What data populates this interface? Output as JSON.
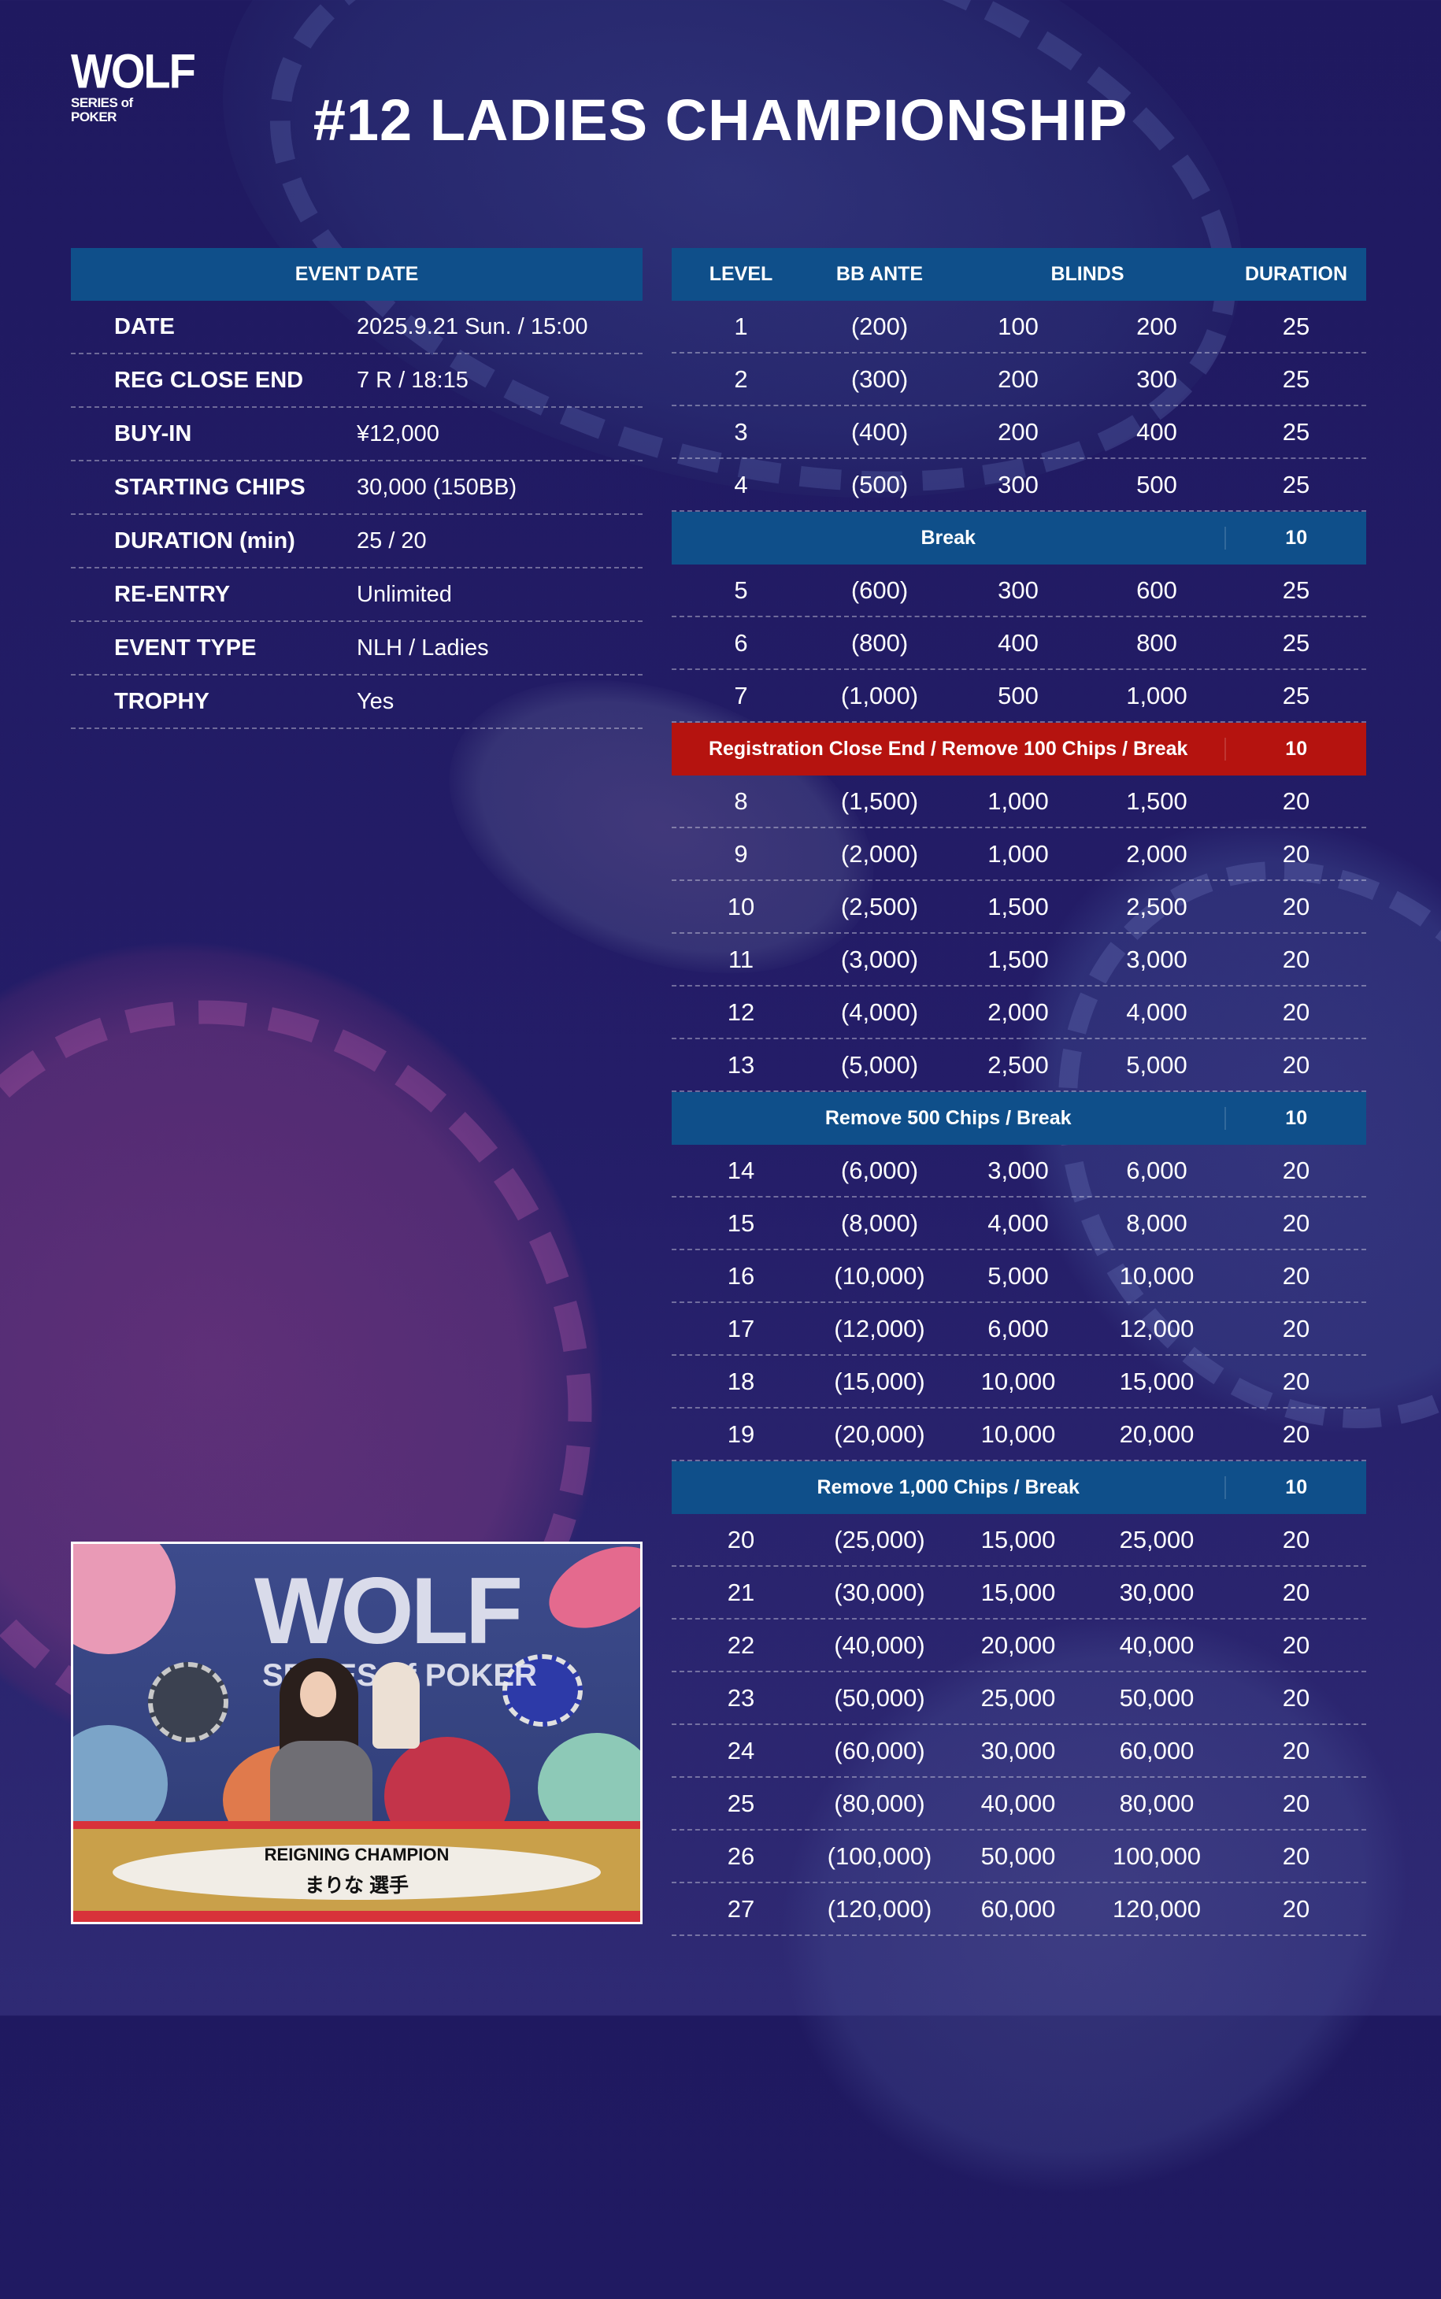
{
  "logo": {
    "main": "WOLF",
    "sub": "SERIES of POKER"
  },
  "title": "#12 LADIES CHAMPIONSHIP",
  "event_info": {
    "header": "EVENT DATE",
    "rows": [
      {
        "label": "DATE",
        "value": "2025.9.21 Sun. / 15:00"
      },
      {
        "label": "REG CLOSE END",
        "value": "7 R / 18:15"
      },
      {
        "label": "BUY-IN",
        "value": "¥12,000"
      },
      {
        "label": "STARTING CHIPS",
        "value": "30,000 (150BB)"
      },
      {
        "label": "DURATION (min)",
        "value": "25 / 20"
      },
      {
        "label": "RE-ENTRY",
        "value": "Unlimited"
      },
      {
        "label": "EVENT TYPE",
        "value": "NLH / Ladies"
      },
      {
        "label": "TROPHY",
        "value": "Yes"
      }
    ]
  },
  "structure": {
    "headers": {
      "level": "LEVEL",
      "ante": "BB ANTE",
      "blinds": "BLINDS",
      "duration": "DURATION"
    },
    "rows": [
      {
        "type": "level",
        "level": "1",
        "ante": "(200)",
        "sb": "100",
        "bb": "200",
        "duration": "25"
      },
      {
        "type": "level",
        "level": "2",
        "ante": "(300)",
        "sb": "200",
        "bb": "300",
        "duration": "25"
      },
      {
        "type": "level",
        "level": "3",
        "ante": "(400)",
        "sb": "200",
        "bb": "400",
        "duration": "25"
      },
      {
        "type": "level",
        "level": "4",
        "ante": "(500)",
        "sb": "300",
        "bb": "500",
        "duration": "25"
      },
      {
        "type": "break",
        "label": "Break",
        "duration": "10",
        "color": "#0f4f8a"
      },
      {
        "type": "level",
        "level": "5",
        "ante": "(600)",
        "sb": "300",
        "bb": "600",
        "duration": "25"
      },
      {
        "type": "level",
        "level": "6",
        "ante": "(800)",
        "sb": "400",
        "bb": "800",
        "duration": "25"
      },
      {
        "type": "level",
        "level": "7",
        "ante": "(1,000)",
        "sb": "500",
        "bb": "1,000",
        "duration": "25"
      },
      {
        "type": "break",
        "label": "Registration Close End / Remove 100 Chips / Break",
        "duration": "10",
        "color": "#b5130f"
      },
      {
        "type": "level",
        "level": "8",
        "ante": "(1,500)",
        "sb": "1,000",
        "bb": "1,500",
        "duration": "20"
      },
      {
        "type": "level",
        "level": "9",
        "ante": "(2,000)",
        "sb": "1,000",
        "bb": "2,000",
        "duration": "20"
      },
      {
        "type": "level",
        "level": "10",
        "ante": "(2,500)",
        "sb": "1,500",
        "bb": "2,500",
        "duration": "20"
      },
      {
        "type": "level",
        "level": "11",
        "ante": "(3,000)",
        "sb": "1,500",
        "bb": "3,000",
        "duration": "20"
      },
      {
        "type": "level",
        "level": "12",
        "ante": "(4,000)",
        "sb": "2,000",
        "bb": "4,000",
        "duration": "20"
      },
      {
        "type": "level",
        "level": "13",
        "ante": "(5,000)",
        "sb": "2,500",
        "bb": "5,000",
        "duration": "20"
      },
      {
        "type": "break",
        "label": "Remove 500 Chips / Break",
        "duration": "10",
        "color": "#0f4f8a"
      },
      {
        "type": "level",
        "level": "14",
        "ante": "(6,000)",
        "sb": "3,000",
        "bb": "6,000",
        "duration": "20"
      },
      {
        "type": "level",
        "level": "15",
        "ante": "(8,000)",
        "sb": "4,000",
        "bb": "8,000",
        "duration": "20"
      },
      {
        "type": "level",
        "level": "16",
        "ante": "(10,000)",
        "sb": "5,000",
        "bb": "10,000",
        "duration": "20"
      },
      {
        "type": "level",
        "level": "17",
        "ante": "(12,000)",
        "sb": "6,000",
        "bb": "12,000",
        "duration": "20"
      },
      {
        "type": "level",
        "level": "18",
        "ante": "(15,000)",
        "sb": "10,000",
        "bb": "15,000",
        "duration": "20"
      },
      {
        "type": "level",
        "level": "19",
        "ante": "(20,000)",
        "sb": "10,000",
        "bb": "20,000",
        "duration": "20"
      },
      {
        "type": "break",
        "label": "Remove 1,000 Chips / Break",
        "duration": "10",
        "color": "#0f4f8a"
      },
      {
        "type": "level",
        "level": "20",
        "ante": "(25,000)",
        "sb": "15,000",
        "bb": "25,000",
        "duration": "20"
      },
      {
        "type": "level",
        "level": "21",
        "ante": "(30,000)",
        "sb": "15,000",
        "bb": "30,000",
        "duration": "20"
      },
      {
        "type": "level",
        "level": "22",
        "ante": "(40,000)",
        "sb": "20,000",
        "bb": "40,000",
        "duration": "20"
      },
      {
        "type": "level",
        "level": "23",
        "ante": "(50,000)",
        "sb": "25,000",
        "bb": "50,000",
        "duration": "20"
      },
      {
        "type": "level",
        "level": "24",
        "ante": "(60,000)",
        "sb": "30,000",
        "bb": "60,000",
        "duration": "20"
      },
      {
        "type": "level",
        "level": "25",
        "ante": "(80,000)",
        "sb": "40,000",
        "bb": "80,000",
        "duration": "20"
      },
      {
        "type": "level",
        "level": "26",
        "ante": "(100,000)",
        "sb": "50,000",
        "bb": "100,000",
        "duration": "20"
      },
      {
        "type": "level",
        "level": "27",
        "ante": "(120,000)",
        "sb": "60,000",
        "bb": "120,000",
        "duration": "20"
      }
    ]
  },
  "champion": {
    "caption_1": "REIGNING CHAMPION",
    "caption_2": "まりな 選手",
    "photo_logo": "WOLF",
    "photo_logo_sub": "SERIES of POKER"
  },
  "colors": {
    "background": "#221b64",
    "header_blue": "#0f4f8a",
    "break_red": "#b5130f"
  }
}
